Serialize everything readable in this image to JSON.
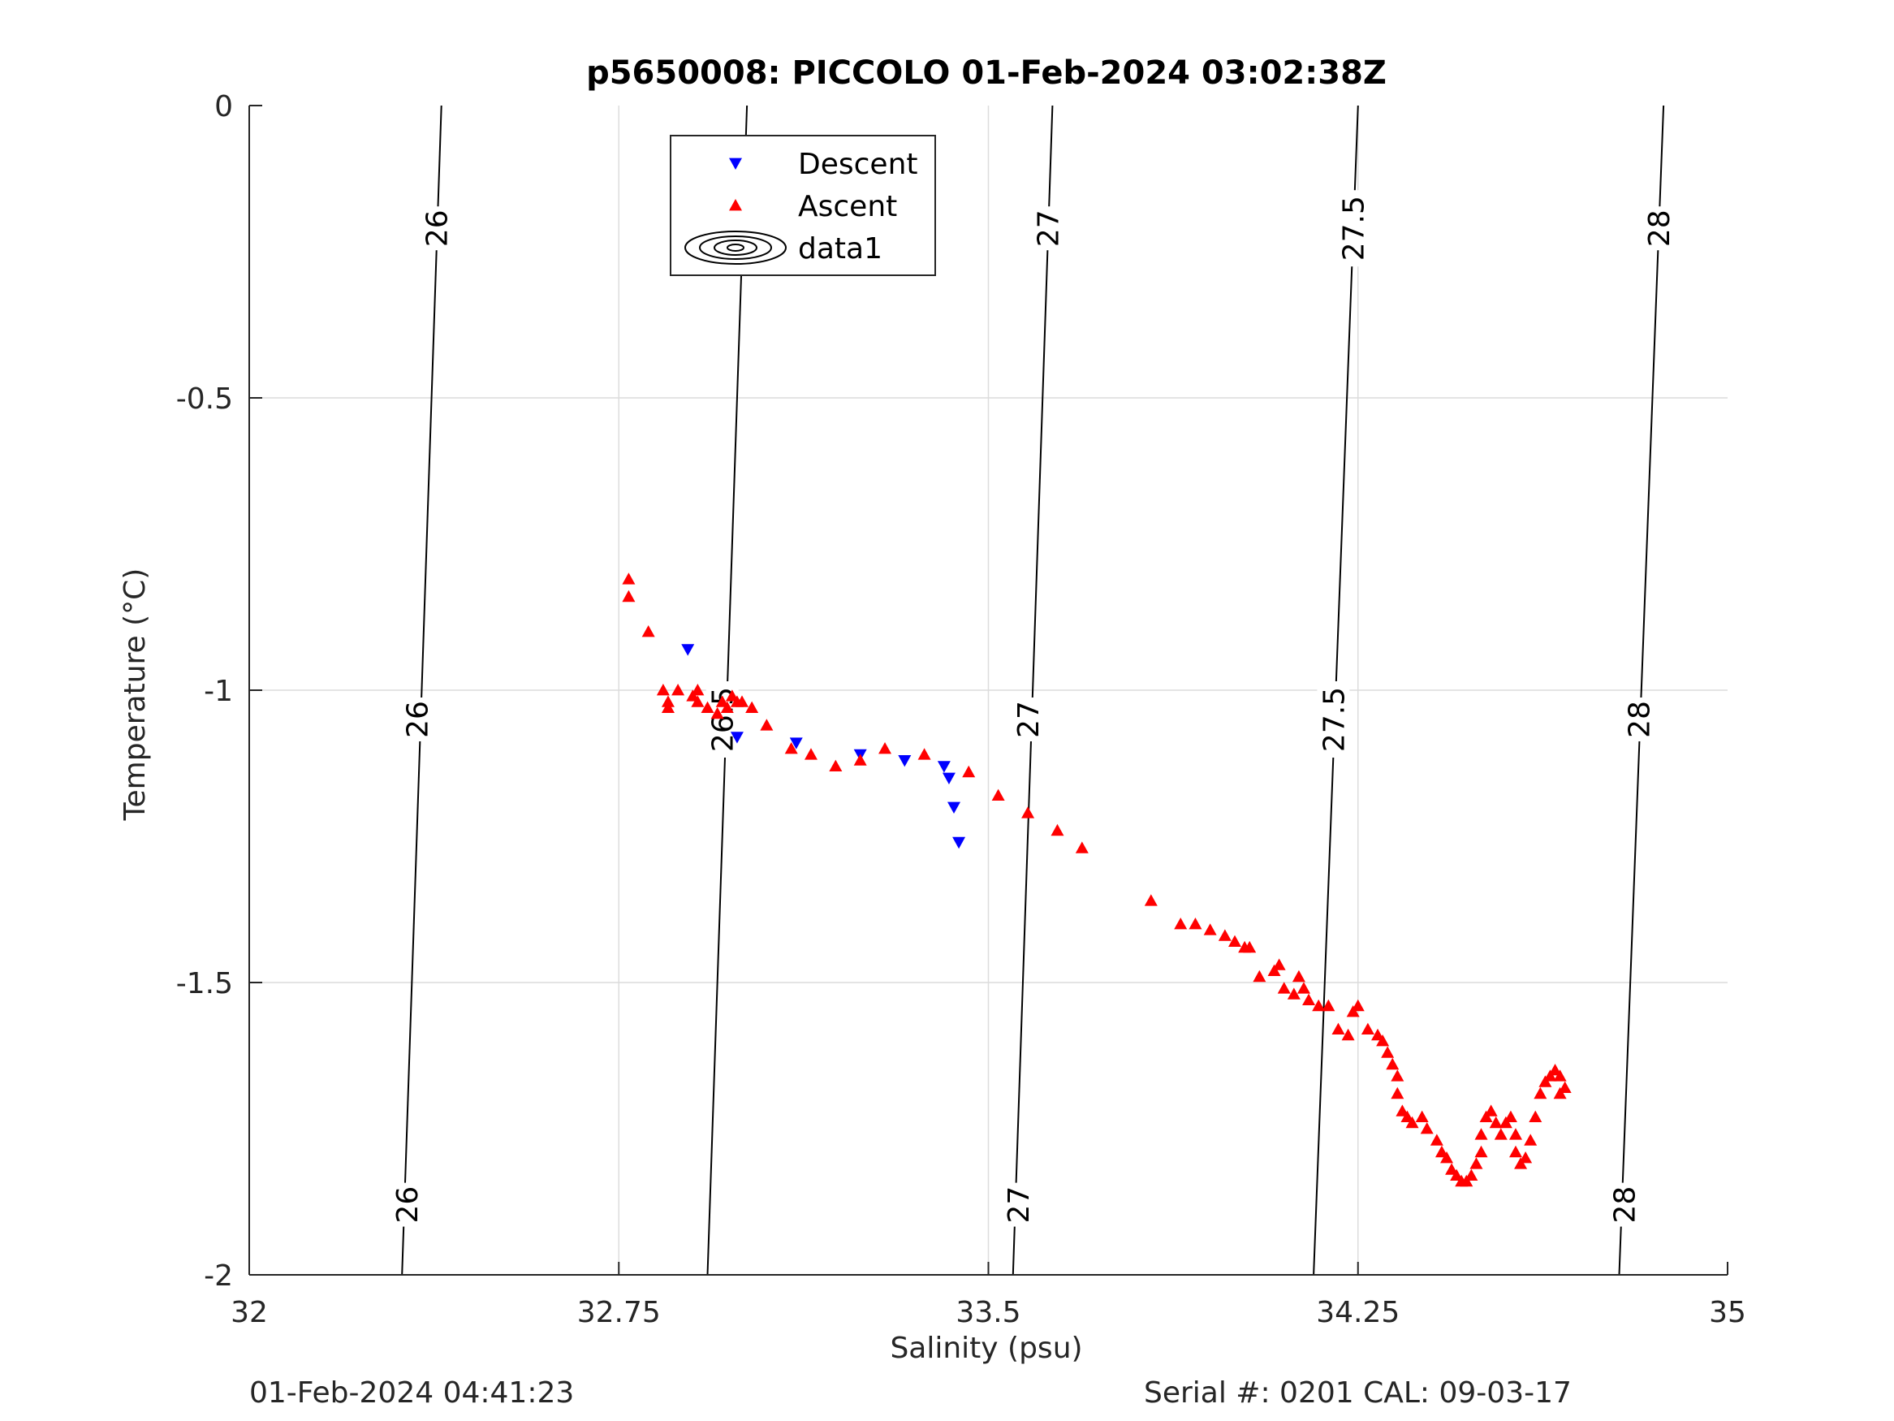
{
  "chart_data": {
    "type": "scatter",
    "title": "p5650008: PICCOLO 01-Feb-2024 03:02:38Z",
    "xlabel": "Salinity (psu)",
    "ylabel": "Temperature (°C)",
    "xlim": [
      32,
      35
    ],
    "ylim": [
      -2,
      0
    ],
    "xticks": [
      "32",
      "32.75",
      "33.5",
      "34.25",
      "35"
    ],
    "xtick_values": [
      32,
      32.75,
      33.5,
      34.25,
      35
    ],
    "yticks": [
      "0",
      "-0.5",
      "-1",
      "-1.5",
      "-2"
    ],
    "ytick_values": [
      0,
      -0.5,
      -1,
      -1.5,
      -2
    ],
    "grid": true,
    "legend_position": "top-center",
    "legend": [
      "Descent",
      "Ascent",
      "data1"
    ],
    "colors": {
      "descent": "#0000ff",
      "ascent": "#ff0000",
      "contour": "#000000",
      "grid": "#dcdcdc",
      "axis": "#262626"
    },
    "contours": [
      {
        "label": "26",
        "points": [
          [
            32.39,
            0
          ],
          [
            32.31,
            -2
          ]
        ]
      },
      {
        "label": "26.5",
        "points": [
          [
            33.01,
            0
          ],
          [
            32.93,
            -2
          ]
        ]
      },
      {
        "label": "27",
        "points": [
          [
            33.63,
            0
          ],
          [
            33.55,
            -2
          ]
        ]
      },
      {
        "label": "27.5",
        "points": [
          [
            34.25,
            0
          ],
          [
            34.16,
            -2
          ]
        ]
      },
      {
        "label": "28",
        "points": [
          [
            34.87,
            0
          ],
          [
            34.78,
            -2
          ]
        ]
      }
    ],
    "contour_label_positions": [
      {
        "label": "26",
        "points": [
          [
            32.38,
            -0.21
          ],
          [
            32.34,
            -1.05
          ],
          [
            32.32,
            -1.88
          ]
        ]
      },
      {
        "label": "26.5",
        "points": [
          [
            33.0,
            -0.21
          ],
          [
            32.96,
            -1.05
          ]
        ]
      },
      {
        "label": "27",
        "points": [
          [
            33.62,
            -0.21
          ],
          [
            33.58,
            -1.05
          ],
          [
            33.56,
            -1.88
          ]
        ]
      },
      {
        "label": "27.5",
        "points": [
          [
            34.24,
            -0.21
          ],
          [
            34.2,
            -1.05
          ]
        ]
      },
      {
        "label": "28",
        "points": [
          [
            34.86,
            -0.21
          ],
          [
            34.82,
            -1.05
          ],
          [
            34.79,
            -1.88
          ]
        ]
      }
    ],
    "series": [
      {
        "name": "Descent",
        "marker": "triangle-down",
        "color": "#0000ff",
        "points": [
          [
            32.89,
            -0.93
          ],
          [
            32.99,
            -1.08
          ],
          [
            33.11,
            -1.09
          ],
          [
            33.24,
            -1.11
          ],
          [
            33.33,
            -1.12
          ],
          [
            33.41,
            -1.13
          ],
          [
            33.42,
            -1.15
          ],
          [
            33.43,
            -1.2
          ],
          [
            33.44,
            -1.26
          ]
        ]
      },
      {
        "name": "Ascent",
        "marker": "triangle-up",
        "color": "#ff0000",
        "points": [
          [
            32.77,
            -0.81
          ],
          [
            32.77,
            -0.84
          ],
          [
            32.81,
            -0.9
          ],
          [
            32.84,
            -1.0
          ],
          [
            32.85,
            -1.03
          ],
          [
            32.85,
            -1.02
          ],
          [
            32.87,
            -1.0
          ],
          [
            32.9,
            -1.01
          ],
          [
            32.91,
            -1.0
          ],
          [
            32.91,
            -1.02
          ],
          [
            32.93,
            -1.03
          ],
          [
            32.95,
            -1.04
          ],
          [
            32.96,
            -1.02
          ],
          [
            32.97,
            -1.03
          ],
          [
            32.98,
            -1.01
          ],
          [
            32.99,
            -1.02
          ],
          [
            33.0,
            -1.02
          ],
          [
            33.02,
            -1.03
          ],
          [
            33.05,
            -1.06
          ],
          [
            33.1,
            -1.1
          ],
          [
            33.14,
            -1.11
          ],
          [
            33.19,
            -1.13
          ],
          [
            33.24,
            -1.12
          ],
          [
            33.29,
            -1.1
          ],
          [
            33.37,
            -1.11
          ],
          [
            33.46,
            -1.14
          ],
          [
            33.52,
            -1.18
          ],
          [
            33.58,
            -1.21
          ],
          [
            33.64,
            -1.24
          ],
          [
            33.69,
            -1.27
          ],
          [
            33.83,
            -1.36
          ],
          [
            33.89,
            -1.4
          ],
          [
            33.92,
            -1.4
          ],
          [
            33.95,
            -1.41
          ],
          [
            33.98,
            -1.42
          ],
          [
            34.0,
            -1.43
          ],
          [
            34.02,
            -1.44
          ],
          [
            34.03,
            -1.44
          ],
          [
            34.05,
            -1.49
          ],
          [
            34.08,
            -1.48
          ],
          [
            34.09,
            -1.47
          ],
          [
            34.1,
            -1.51
          ],
          [
            34.12,
            -1.52
          ],
          [
            34.13,
            -1.49
          ],
          [
            34.14,
            -1.51
          ],
          [
            34.15,
            -1.53
          ],
          [
            34.17,
            -1.54
          ],
          [
            34.19,
            -1.54
          ],
          [
            34.21,
            -1.58
          ],
          [
            34.23,
            -1.59
          ],
          [
            34.24,
            -1.55
          ],
          [
            34.25,
            -1.54
          ],
          [
            34.27,
            -1.58
          ],
          [
            34.29,
            -1.59
          ],
          [
            34.3,
            -1.6
          ],
          [
            34.31,
            -1.62
          ],
          [
            34.32,
            -1.64
          ],
          [
            34.33,
            -1.66
          ],
          [
            34.33,
            -1.69
          ],
          [
            34.34,
            -1.72
          ],
          [
            34.35,
            -1.73
          ],
          [
            34.36,
            -1.74
          ],
          [
            34.38,
            -1.73
          ],
          [
            34.39,
            -1.75
          ],
          [
            34.41,
            -1.77
          ],
          [
            34.42,
            -1.79
          ],
          [
            34.43,
            -1.8
          ],
          [
            34.44,
            -1.82
          ],
          [
            34.45,
            -1.83
          ],
          [
            34.46,
            -1.84
          ],
          [
            34.47,
            -1.84
          ],
          [
            34.48,
            -1.83
          ],
          [
            34.49,
            -1.81
          ],
          [
            34.5,
            -1.79
          ],
          [
            34.5,
            -1.76
          ],
          [
            34.51,
            -1.73
          ],
          [
            34.52,
            -1.72
          ],
          [
            34.53,
            -1.74
          ],
          [
            34.54,
            -1.76
          ],
          [
            34.55,
            -1.74
          ],
          [
            34.56,
            -1.73
          ],
          [
            34.57,
            -1.76
          ],
          [
            34.57,
            -1.79
          ],
          [
            34.58,
            -1.81
          ],
          [
            34.59,
            -1.8
          ],
          [
            34.6,
            -1.77
          ],
          [
            34.61,
            -1.73
          ],
          [
            34.62,
            -1.69
          ],
          [
            34.63,
            -1.67
          ],
          [
            34.64,
            -1.66
          ],
          [
            34.65,
            -1.65
          ],
          [
            34.66,
            -1.66
          ],
          [
            34.67,
            -1.68
          ],
          [
            34.66,
            -1.69
          ]
        ]
      }
    ]
  },
  "footer": {
    "timestamp": "01-Feb-2024 04:41:23",
    "serial": "Serial #: 0201  CAL: 09-03-17"
  }
}
